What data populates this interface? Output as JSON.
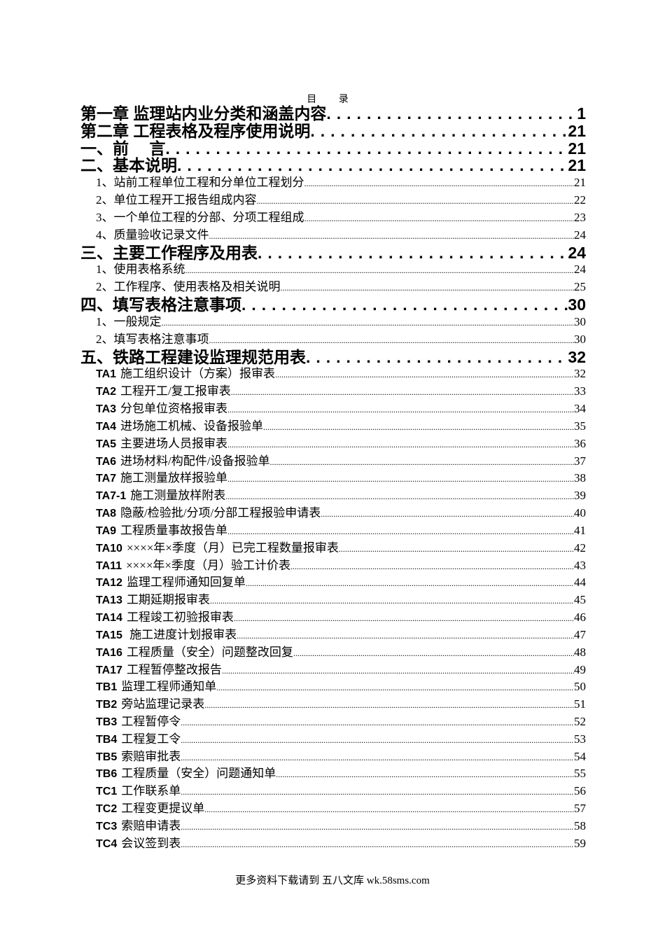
{
  "title": "目 录",
  "entries": [
    {
      "level": 1,
      "code": "",
      "text": "第一章 监理站内业分类和涵盖内容",
      "page": "1"
    },
    {
      "level": 1,
      "code": "",
      "text": "第二章 工程表格及程序使用说明",
      "page": "21"
    },
    {
      "level": 1,
      "code": "",
      "text": "一、前　 言",
      "page": "21"
    },
    {
      "level": 1,
      "code": "",
      "text": "二、基本说明",
      "page": "21"
    },
    {
      "level": 2,
      "code": "",
      "text": "1、站前工程单位工程和分单位工程划分",
      "page": "21"
    },
    {
      "level": 2,
      "code": "",
      "text": "2、单位工程开工报告组成内容",
      "page": "22"
    },
    {
      "level": 2,
      "code": "",
      "text": "3、一个单位工程的分部、分项工程组成",
      "page": "23"
    },
    {
      "level": 2,
      "code": "",
      "text": "4、质量验收记录文件",
      "page": "24"
    },
    {
      "level": 1,
      "code": "",
      "text": "三、主要工作程序及用表",
      "page": "24"
    },
    {
      "level": 2,
      "code": "",
      "text": "1、使用表格系统",
      "page": "24"
    },
    {
      "level": 2,
      "code": "",
      "text": "2、工作程序、使用表格及相关说明",
      "page": "25"
    },
    {
      "level": 1,
      "code": "",
      "text": "四、填写表格注意事项",
      "page": "30"
    },
    {
      "level": 2,
      "code": "",
      "text": "1、一般规定",
      "page": "30"
    },
    {
      "level": 2,
      "code": "",
      "text": "2、填写表格注意事项",
      "page": "30"
    },
    {
      "level": 1,
      "code": "",
      "text": "五、铁路工程建设监理规范用表",
      "page": "32"
    },
    {
      "level": 2,
      "code": "TA1",
      "text": "施工组织设计（方案）报审表",
      "page": "32"
    },
    {
      "level": 2,
      "code": "TA2",
      "text": "工程开工/复工报审表",
      "page": "33"
    },
    {
      "level": 2,
      "code": "TA3",
      "text": "分包单位资格报审表",
      "page": "34"
    },
    {
      "level": 2,
      "code": "TA4",
      "text": "进场施工机械、设备报验单",
      "page": "35"
    },
    {
      "level": 2,
      "code": "TA5",
      "text": "主要进场人员报审表",
      "page": "36"
    },
    {
      "level": 2,
      "code": "TA6",
      "text": "进场材料/构配件/设备报验单",
      "page": "37"
    },
    {
      "level": 2,
      "code": "TA7",
      "text": "施工测量放样报验单",
      "page": "38"
    },
    {
      "level": 2,
      "code": "TA7-1",
      "text": "施工测量放样附表",
      "page": "39"
    },
    {
      "level": 2,
      "code": "TA8",
      "text": "隐蔽/检验批/分项/分部工程报验申请表",
      "page": "40"
    },
    {
      "level": 2,
      "code": "TA9",
      "text": "工程质量事故报告单",
      "page": "41"
    },
    {
      "level": 2,
      "code": "TA10",
      "text": "××××年×季度（月）已完工程数量报审表",
      "page": "42"
    },
    {
      "level": 2,
      "code": "TA11",
      "text": "××××年×季度（月）验工计价表",
      "page": "43"
    },
    {
      "level": 2,
      "code": "TA12",
      "text": "监理工程师通知回复单",
      "page": "44"
    },
    {
      "level": 2,
      "code": "TA13",
      "text": "工期延期报审表",
      "page": "45"
    },
    {
      "level": 2,
      "code": "TA14",
      "text": "工程竣工初验报审表",
      "page": "46"
    },
    {
      "level": 2,
      "code": "TA15",
      "text": " 施工进度计划报审表",
      "page": "47"
    },
    {
      "level": 2,
      "code": "TA16",
      "text": "工程质量（安全）问题整改回复",
      "page": "48"
    },
    {
      "level": 2,
      "code": "TA17",
      "text": "工程暂停整改报告",
      "page": "49"
    },
    {
      "level": 2,
      "code": "TB1",
      "text": "监理工程师通知单",
      "page": "50"
    },
    {
      "level": 2,
      "code": "TB2",
      "text": "旁站监理记录表",
      "page": "51"
    },
    {
      "level": 2,
      "code": "TB3",
      "text": "工程暂停令",
      "page": "52"
    },
    {
      "level": 2,
      "code": "TB4",
      "text": "工程复工令",
      "page": "53"
    },
    {
      "level": 2,
      "code": "TB5",
      "text": "索赔审批表",
      "page": "54"
    },
    {
      "level": 2,
      "code": "TB6",
      "text": "工程质量（安全）问题通知单",
      "page": "55"
    },
    {
      "level": 2,
      "code": "TC1",
      "text": "工作联系单",
      "page": "56"
    },
    {
      "level": 2,
      "code": "TC2",
      "text": "工程变更提议单",
      "page": "57"
    },
    {
      "level": 2,
      "code": "TC3",
      "text": "索赔申请表",
      "page": "58"
    },
    {
      "level": 2,
      "code": "TC4",
      "text": "会议签到表",
      "page": "59"
    }
  ],
  "footer": "更多资料下载请到 五八文库 wk.58sms.com"
}
